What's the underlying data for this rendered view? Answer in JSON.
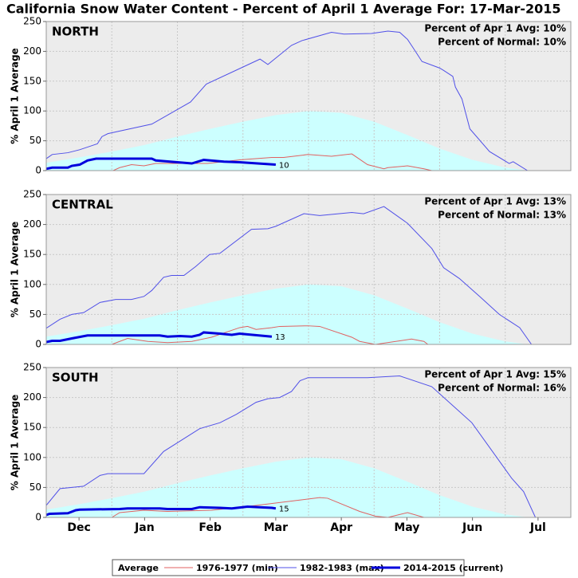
{
  "title": "California Snow Water Content - Percent of April 1 Average For: 17-Mar-2015",
  "chart_data": [
    {
      "type": "line",
      "label": "NORTH",
      "annotations": [
        "Percent of Apr 1 Avg: 10%",
        "Percent of Normal: 10%"
      ],
      "ylabel": "% April 1 Average",
      "ylim": [
        0,
        250
      ],
      "yticks": [
        0,
        50,
        100,
        150,
        200,
        250
      ],
      "xlim": [
        1,
        9
      ],
      "xticks": [
        {
          "value": 1.5,
          "label": "Dec"
        },
        {
          "value": 2.5,
          "label": "Jan"
        },
        {
          "value": 3.5,
          "label": "Feb"
        },
        {
          "value": 4.5,
          "label": "Mar"
        },
        {
          "value": 5.5,
          "label": "Apr"
        },
        {
          "value": 6.5,
          "label": "May"
        },
        {
          "value": 7.5,
          "label": "Jun"
        },
        {
          "value": 8.5,
          "label": "Jul"
        }
      ],
      "xgrid": [
        2,
        3,
        4,
        5,
        6,
        7,
        8
      ],
      "grid": true,
      "series": [
        {
          "name": "Average",
          "color": "#ccffff",
          "fill": true,
          "x": [
            1,
            1.5,
            2,
            2.5,
            3,
            3.5,
            4,
            4.5,
            5,
            5.5,
            6,
            6.5,
            7,
            7.5,
            8,
            8.34
          ],
          "values": [
            13,
            22,
            32,
            43,
            57,
            70,
            82,
            93,
            100,
            97,
            82,
            60,
            37,
            18,
            5,
            0
          ]
        },
        {
          "name": "1976-1977 (min)",
          "color": "#e06060",
          "x": [
            2.02,
            2.12,
            2.3,
            2.49,
            2.67,
            3.22,
            3.46,
            3.95,
            4.44,
            4.62,
            4.99,
            5.35,
            5.66,
            5.9,
            6.15,
            6.21,
            6.51,
            6.76,
            6.88
          ],
          "values": [
            0,
            5,
            10,
            8,
            12,
            12,
            12,
            18,
            22,
            22,
            27,
            24,
            28,
            10,
            3,
            5,
            8,
            3,
            0
          ]
        },
        {
          "name": "1982-1983 (max)",
          "color": "#5050e8",
          "x": [
            1,
            1.09,
            1.33,
            1.51,
            1.7,
            1.78,
            1.85,
            1.94,
            2.61,
            3.2,
            3.44,
            4.26,
            4.38,
            4.74,
            4.9,
            5.35,
            5.54,
            5.96,
            6.21,
            6.39,
            6.51,
            6.6,
            6.73,
            7,
            7.06,
            7.2,
            7.24,
            7.34,
            7.46,
            7.76,
            8.06,
            8.12,
            8.34
          ],
          "values": [
            20,
            27,
            30,
            35,
            42,
            45,
            57,
            62,
            78,
            115,
            145,
            187,
            178,
            210,
            218,
            232,
            229,
            230,
            234,
            232,
            220,
            205,
            183,
            172,
            168,
            158,
            140,
            120,
            70,
            32,
            12,
            15,
            0
          ]
        },
        {
          "name": "2014-2015 (current)",
          "color": "#0000dd",
          "width": 3,
          "x": [
            1,
            1.09,
            1.33,
            1.39,
            1.51,
            1.63,
            1.76,
            2.61,
            2.67,
            3.22,
            3.4,
            3.71,
            3.95,
            4.5
          ],
          "values": [
            3,
            5,
            5,
            8,
            10,
            17,
            20,
            20,
            17,
            12,
            18,
            15,
            14,
            10
          ],
          "end_label": 10
        }
      ]
    },
    {
      "type": "line",
      "label": "CENTRAL",
      "annotations": [
        "Percent of Apr 1 Avg: 13%",
        "Percent of Normal: 13%"
      ],
      "ylabel": "% April 1 Average",
      "ylim": [
        0,
        250
      ],
      "yticks": [
        0,
        50,
        100,
        150,
        200,
        250
      ],
      "xlim": [
        1,
        9
      ],
      "xticks": [
        {
          "value": 1.5,
          "label": "Dec"
        },
        {
          "value": 2.5,
          "label": "Jan"
        },
        {
          "value": 3.5,
          "label": "Feb"
        },
        {
          "value": 4.5,
          "label": "Mar"
        },
        {
          "value": 5.5,
          "label": "Apr"
        },
        {
          "value": 6.5,
          "label": "May"
        },
        {
          "value": 7.5,
          "label": "Jun"
        },
        {
          "value": 8.5,
          "label": "Jul"
        }
      ],
      "xgrid": [
        2,
        3,
        4,
        5,
        6,
        7,
        8
      ],
      "grid": true,
      "series": [
        {
          "name": "Average",
          "color": "#ccffff",
          "fill": true,
          "x": [
            1,
            1.5,
            2,
            2.5,
            3,
            3.5,
            4,
            4.5,
            5,
            5.5,
            6,
            6.5,
            7,
            7.5,
            8,
            8.34
          ],
          "values": [
            13,
            22,
            32,
            43,
            57,
            70,
            82,
            93,
            100,
            97,
            82,
            60,
            37,
            18,
            5,
            0
          ]
        },
        {
          "name": "1976-1977 (min)",
          "color": "#e06060",
          "x": [
            2,
            2.24,
            2.55,
            2.85,
            3.22,
            3.52,
            3.95,
            4.07,
            4.2,
            4.44,
            4.56,
            4.99,
            5.17,
            5.66,
            5.78,
            6.02,
            6.33,
            6.57,
            6.76,
            6.82
          ],
          "values": [
            0,
            10,
            5,
            3,
            5,
            12,
            28,
            30,
            25,
            28,
            30,
            31,
            30,
            12,
            5,
            0,
            5,
            9,
            5,
            0
          ]
        },
        {
          "name": "1982-1983 (max)",
          "color": "#5050e8",
          "x": [
            1,
            1.21,
            1.39,
            1.57,
            1.82,
            2.06,
            2.3,
            2.49,
            2.61,
            2.79,
            2.91,
            3.1,
            3.28,
            3.49,
            3.65,
            4.13,
            4.38,
            4.5,
            4.93,
            5.17,
            5.66,
            5.84,
            6.15,
            6.51,
            6.88,
            7.06,
            7.3,
            7.61,
            7.91,
            8.22,
            8.4
          ],
          "values": [
            27,
            42,
            50,
            53,
            70,
            75,
            75,
            80,
            90,
            112,
            115,
            115,
            130,
            150,
            152,
            192,
            193,
            197,
            218,
            215,
            220,
            218,
            230,
            202,
            160,
            128,
            110,
            80,
            50,
            28,
            0
          ]
        },
        {
          "name": "2014-2015 (current)",
          "color": "#0000dd",
          "width": 3,
          "x": [
            1,
            1.09,
            1.21,
            1.39,
            1.63,
            2.73,
            2.85,
            3.04,
            3.22,
            3.34,
            3.4,
            3.65,
            3.83,
            3.95,
            4.44
          ],
          "values": [
            4,
            6,
            6,
            10,
            15,
            15,
            13,
            14,
            13,
            16,
            20,
            18,
            16,
            18,
            13
          ],
          "end_label": 13
        }
      ]
    },
    {
      "type": "line",
      "label": "SOUTH",
      "annotations": [
        "Percent of Apr 1 Avg: 15%",
        "Percent of Normal: 16%"
      ],
      "ylabel": "% April 1 Average",
      "ylim": [
        0,
        250
      ],
      "yticks": [
        0,
        50,
        100,
        150,
        200,
        250
      ],
      "xlim": [
        1,
        9
      ],
      "xticks": [
        {
          "value": 1.5,
          "label": "Dec"
        },
        {
          "value": 2.5,
          "label": "Jan"
        },
        {
          "value": 3.5,
          "label": "Feb"
        },
        {
          "value": 4.5,
          "label": "Mar"
        },
        {
          "value": 5.5,
          "label": "Apr"
        },
        {
          "value": 6.5,
          "label": "May"
        },
        {
          "value": 7.5,
          "label": "Jun"
        },
        {
          "value": 8.5,
          "label": "Jul"
        }
      ],
      "xgrid": [
        2,
        3,
        4,
        5,
        6,
        7,
        8
      ],
      "grid": true,
      "series": [
        {
          "name": "Average",
          "color": "#ccffff",
          "fill": true,
          "x": [
            1,
            1.5,
            2,
            2.5,
            3,
            3.5,
            4,
            4.5,
            5,
            5.5,
            6,
            6.5,
            7,
            7.5,
            8,
            8.34
          ],
          "values": [
            13,
            22,
            32,
            43,
            57,
            70,
            82,
            93,
            100,
            97,
            82,
            60,
            37,
            18,
            5,
            0
          ]
        },
        {
          "name": "1976-1977 (min)",
          "color": "#e06060",
          "x": [
            2,
            2.12,
            2.49,
            2.85,
            3.52,
            4.2,
            5.17,
            5.29,
            5.78,
            6.02,
            6.21,
            6.51,
            6.76
          ],
          "values": [
            0,
            8,
            12,
            10,
            12,
            20,
            33,
            32,
            10,
            2,
            0,
            8,
            0
          ]
        },
        {
          "name": "1982-1983 (max)",
          "color": "#5050e8",
          "x": [
            1,
            1.21,
            1.57,
            1.82,
            1.94,
            2.49,
            2.79,
            3.34,
            3.65,
            3.9,
            4.2,
            4.38,
            4.56,
            4.74,
            4.87,
            4.99,
            5.9,
            6.39,
            6.88,
            7.49,
            8.1,
            8.28,
            8.46
          ],
          "values": [
            20,
            48,
            52,
            70,
            73,
            73,
            110,
            148,
            158,
            172,
            192,
            198,
            200,
            210,
            228,
            233,
            233,
            236,
            218,
            158,
            65,
            43,
            0
          ]
        },
        {
          "name": "2014-2015 (current)",
          "color": "#0000dd",
          "width": 3,
          "x": [
            1,
            1.05,
            1.33,
            1.45,
            1.51,
            2.12,
            2.24,
            2.73,
            2.85,
            3.22,
            3.34,
            3.65,
            3.83,
            4.07,
            4.44,
            4.5
          ],
          "values": [
            4,
            6,
            7,
            12,
            13,
            14,
            15,
            15,
            14,
            14,
            17,
            16,
            15,
            18,
            16,
            15
          ],
          "end_label": 15
        }
      ]
    }
  ]
}
